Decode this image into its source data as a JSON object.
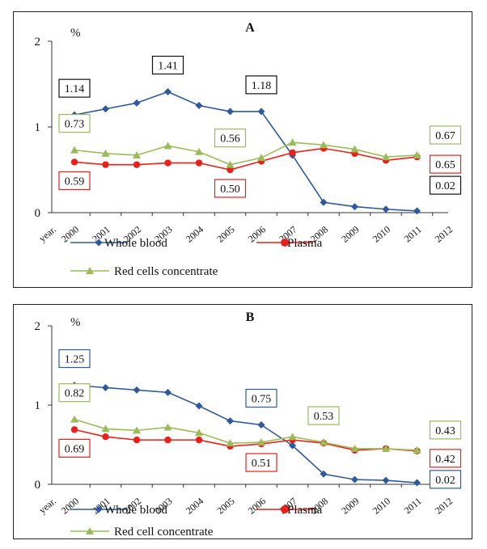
{
  "chart_data": [
    {
      "type": "line",
      "title": "A",
      "ylabel": "%",
      "xlabel": "year",
      "x_axis_start_label": "year.",
      "categories": [
        "2000",
        "2001",
        "2002",
        "2003",
        "2004",
        "2005",
        "2006",
        "2007",
        "2008",
        "2009",
        "2010",
        "2011"
      ],
      "extra_tick": "2012",
      "yticks": [
        "0",
        "1",
        "2"
      ],
      "ylim": [
        0,
        2
      ],
      "series": [
        {
          "name": "Whole blood",
          "color": "#2e5a9c",
          "marker": "diamond",
          "values": [
            1.14,
            1.21,
            1.28,
            1.41,
            1.25,
            1.18,
            1.18,
            0.67,
            0.12,
            0.07,
            0.04,
            0.02
          ]
        },
        {
          "name": "Plasma",
          "color": "#e8211a",
          "marker": "circle",
          "values": [
            0.59,
            0.56,
            0.56,
            0.58,
            0.58,
            0.5,
            0.6,
            0.7,
            0.75,
            0.69,
            0.61,
            0.65
          ]
        },
        {
          "name": "Red cells concentrate",
          "color": "#9bbb59",
          "marker": "triangle",
          "values": [
            0.73,
            0.69,
            0.67,
            0.78,
            0.71,
            0.56,
            0.64,
            0.82,
            0.79,
            0.74,
            0.65,
            0.67
          ]
        }
      ],
      "callouts": [
        {
          "text": "1.14",
          "series": 0,
          "index": 0,
          "pos": "above",
          "border": "#111111"
        },
        {
          "text": "1.41",
          "series": 0,
          "index": 3,
          "pos": "above",
          "border": "#111111"
        },
        {
          "text": "1.18",
          "series": 0,
          "index": 6,
          "pos": "above",
          "border": "#111111"
        },
        {
          "text": "0.73",
          "series": 2,
          "index": 0,
          "pos": "above",
          "border": "#9bbb59"
        },
        {
          "text": "0.56",
          "series": 2,
          "index": 5,
          "pos": "above",
          "border": "#9bbb59"
        },
        {
          "text": "0.67",
          "series": 2,
          "index": 11,
          "pos": "right-above",
          "border": "#9bbb59"
        },
        {
          "text": "0.59",
          "series": 1,
          "index": 0,
          "pos": "below",
          "border": "#e8211a"
        },
        {
          "text": "0.50",
          "series": 1,
          "index": 5,
          "pos": "below",
          "border": "#e8211a"
        },
        {
          "text": "0.65",
          "series": 1,
          "index": 11,
          "pos": "right-below",
          "border": "#e8211a"
        },
        {
          "text": "0.02",
          "series": 0,
          "index": 11,
          "pos": "right-below2",
          "border": "#111111"
        }
      ]
    },
    {
      "type": "line",
      "title": "B",
      "ylabel": "%",
      "xlabel": "year",
      "x_axis_start_label": "year.",
      "categories": [
        "2000",
        "2001",
        "2002",
        "2003",
        "2004",
        "2005",
        "2006",
        "2007",
        "2008",
        "2009",
        "2010",
        "2011"
      ],
      "extra_tick": "2012",
      "yticks": [
        "0",
        "1",
        "2"
      ],
      "ylim": [
        0,
        2
      ],
      "series": [
        {
          "name": "Whole blood",
          "color": "#2e5a9c",
          "marker": "diamond",
          "values": [
            1.25,
            1.22,
            1.19,
            1.16,
            0.99,
            0.8,
            0.75,
            0.49,
            0.13,
            0.06,
            0.05,
            0.02
          ]
        },
        {
          "name": "Plasma",
          "color": "#e8211a",
          "marker": "circle",
          "values": [
            0.69,
            0.6,
            0.56,
            0.56,
            0.56,
            0.48,
            0.51,
            0.56,
            0.52,
            0.43,
            0.45,
            0.42
          ]
        },
        {
          "name": "Red cell concentrate",
          "color": "#9bbb59",
          "marker": "triangle",
          "values": [
            0.82,
            0.7,
            0.68,
            0.72,
            0.65,
            0.52,
            0.53,
            0.6,
            0.53,
            0.45,
            0.45,
            0.43
          ]
        }
      ],
      "callouts": [
        {
          "text": "1.25",
          "series": 0,
          "index": 0,
          "pos": "above",
          "border": "#2e5a9c"
        },
        {
          "text": "0.75",
          "series": 0,
          "index": 6,
          "pos": "above",
          "border": "#2e5a9c"
        },
        {
          "text": "0.82",
          "series": 2,
          "index": 0,
          "pos": "above",
          "border": "#9bbb59"
        },
        {
          "text": "0.53",
          "series": 2,
          "index": 8,
          "pos": "above",
          "border": "#9bbb59"
        },
        {
          "text": "0.43",
          "series": 2,
          "index": 11,
          "pos": "right-above",
          "border": "#9bbb59"
        },
        {
          "text": "0.69",
          "series": 1,
          "index": 0,
          "pos": "below",
          "border": "#e8211a"
        },
        {
          "text": "0.51",
          "series": 1,
          "index": 6,
          "pos": "below",
          "border": "#e8211a"
        },
        {
          "text": "0.42",
          "series": 1,
          "index": 11,
          "pos": "right-below",
          "border": "#e8211a"
        },
        {
          "text": "0.02",
          "series": 0,
          "index": 11,
          "pos": "right-below2",
          "border": "#2e5a9c"
        }
      ]
    }
  ]
}
